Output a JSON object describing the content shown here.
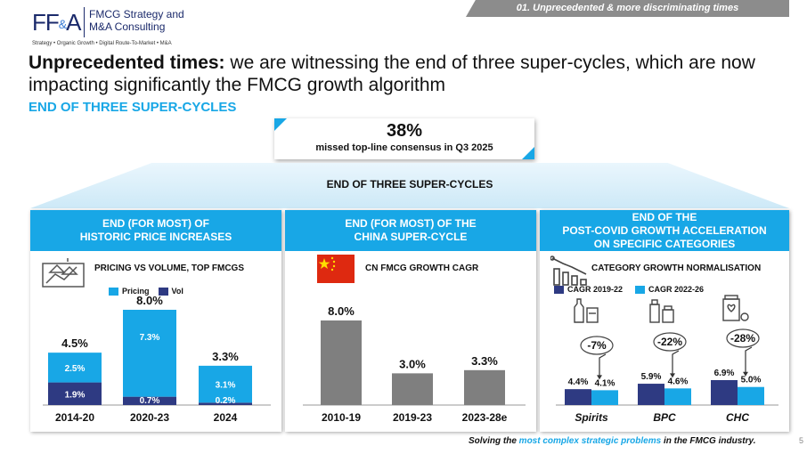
{
  "brand": {
    "logo_mark": "FF",
    "logo_amp": "&",
    "logo_mark2": "A",
    "name_line1": "FMCG Strategy and",
    "name_line2": "M&A Consulting",
    "tagline": "Strategy • Organic Growth • Digital Route-To-Market • M&A"
  },
  "section_tag": "01. Unprecedented & more discriminating times",
  "headline": {
    "bold": "Unprecedented times:",
    "rest": " we are witnessing the end of three super-cycles, which are now impacting significantly the FMCG growth algorithm"
  },
  "subhead": "END OF THREE SUPER-CYCLES",
  "callout": {
    "value": "38%",
    "text": "missed top-line consensus in Q3 2025"
  },
  "trapezoid_label": "END OF THREE SUPER-CYCLES",
  "colors": {
    "accent": "#18a7e6",
    "navy": "#2e3a82",
    "grey": "#7f7f7f",
    "light_blue": "#18a7e6"
  },
  "panels": [
    {
      "header_line1": "END (FOR MOST) OF",
      "header_line2": "HISTORIC PRICE INCREASES",
      "header_line3": "",
      "title": "PRICING VS VOLUME, TOP FMCGS",
      "icon": "houses-chart-icon"
    },
    {
      "header_line1": "END (FOR MOST) OF THE",
      "header_line2": "CHINA SUPER-CYCLE",
      "header_line3": "",
      "title": "CN FMCG GROWTH CAGR",
      "icon": "china-flag-icon"
    },
    {
      "header_line1": "END OF THE",
      "header_line2": "POST-COVID GROWTH ACCELERATION",
      "header_line3": "ON SPECIFIC CATEGORIES",
      "title": "CATEGORY GROWTH NORMALISATION",
      "icon": "declining-bars-icon"
    }
  ],
  "chart_data": [
    {
      "type": "bar",
      "stacked": true,
      "categories": [
        "2014-20",
        "2020-23",
        "2024"
      ],
      "series": [
        {
          "name": "Vol",
          "values": [
            1.9,
            0.7,
            0.2
          ],
          "labels": [
            "1.9%",
            "0.7%",
            "0.2%"
          ]
        },
        {
          "name": "Pricing",
          "values": [
            2.5,
            7.3,
            3.1
          ],
          "labels": [
            "2.5%",
            "7.3%",
            "3.1%"
          ]
        }
      ],
      "totals": [
        4.5,
        8.0,
        3.3
      ],
      "total_labels": [
        "4.5%",
        "8.0%",
        "3.3%"
      ],
      "legend": [
        "Pricing",
        "Vol"
      ]
    },
    {
      "type": "bar",
      "categories": [
        "2010-19",
        "2019-23",
        "2023-28e"
      ],
      "values": [
        8.0,
        3.0,
        3.3
      ],
      "labels": [
        "8.0%",
        "3.0%",
        "3.3%"
      ]
    },
    {
      "type": "bar",
      "grouped": true,
      "categories": [
        "Spirits",
        "BPC",
        "CHC"
      ],
      "series": [
        {
          "name": "CAGR 2019-22",
          "values": [
            4.4,
            5.9,
            6.9
          ],
          "labels": [
            "4.4%",
            "5.9%",
            "6.9%"
          ]
        },
        {
          "name": "CAGR 2022-26",
          "values": [
            4.1,
            4.6,
            5.0
          ],
          "labels": [
            "4.1%",
            "4.6%",
            "5.0%"
          ]
        }
      ],
      "changes": [
        "-7%",
        "-22%",
        "-28%"
      ],
      "category_icons": [
        "spirits-bottles-icon",
        "cosmetics-icon",
        "medicine-icon"
      ]
    }
  ],
  "footer": {
    "pre": "Solving the ",
    "highlight": "most complex strategic problems",
    "post": " in the FMCG industry."
  },
  "page_number": "5"
}
